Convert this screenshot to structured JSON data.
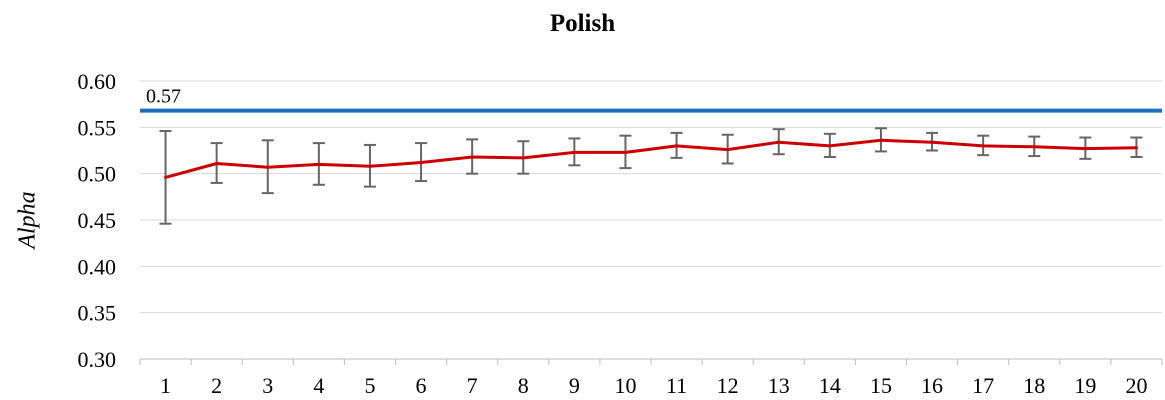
{
  "chart_data": {
    "type": "line",
    "title": "Polish",
    "xlabel": "",
    "ylabel": "Alpha",
    "categories": [
      "1",
      "2",
      "3",
      "4",
      "5",
      "6",
      "7",
      "8",
      "9",
      "10",
      "11",
      "12",
      "13",
      "14",
      "15",
      "16",
      "17",
      "18",
      "19",
      "20"
    ],
    "ylim": [
      0.3,
      0.6
    ],
    "yticks": [
      "0.30",
      "0.35",
      "0.40",
      "0.45",
      "0.50",
      "0.55",
      "0.60"
    ],
    "grid": true,
    "series": [
      {
        "values": [
          0.496,
          0.511,
          0.507,
          0.51,
          0.508,
          0.512,
          0.518,
          0.517,
          0.523,
          0.523,
          0.53,
          0.526,
          0.534,
          0.53,
          0.536,
          0.534,
          0.53,
          0.529,
          0.527,
          0.528
        ],
        "error_low": [
          0.446,
          0.49,
          0.479,
          0.488,
          0.486,
          0.492,
          0.5,
          0.5,
          0.509,
          0.506,
          0.517,
          0.511,
          0.521,
          0.518,
          0.524,
          0.525,
          0.52,
          0.519,
          0.516,
          0.518
        ],
        "error_high": [
          0.546,
          0.533,
          0.536,
          0.533,
          0.531,
          0.533,
          0.537,
          0.535,
          0.538,
          0.541,
          0.544,
          0.542,
          0.548,
          0.543,
          0.549,
          0.544,
          0.541,
          0.54,
          0.539,
          0.539
        ],
        "color": "#cc0000",
        "error_color": "#666666"
      }
    ],
    "reference_line": {
      "value": 0.568,
      "label": "0.57",
      "color": "#1f6fbf"
    }
  }
}
